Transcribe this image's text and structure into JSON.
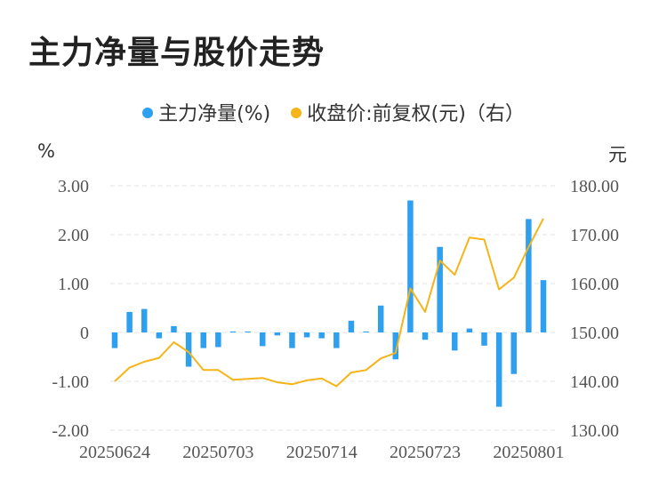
{
  "chart_data": {
    "type": "bar",
    "title": "主力净量与股价走势",
    "legend": [
      {
        "label": "主力净量(%)",
        "color": "#2f9ff0"
      },
      {
        "label": "收盘价:前复权(元)（右）",
        "color": "#f5b417"
      }
    ],
    "left_unit": "%",
    "right_unit": "元",
    "ylim_left": [
      -2,
      3
    ],
    "ylim_right": [
      130,
      180
    ],
    "left_ticks": [
      "3.00",
      "2.00",
      "1.00",
      "0",
      "-1.00",
      "-2.00"
    ],
    "left_tick_values": [
      3,
      2,
      1,
      0,
      -1,
      -2
    ],
    "right_ticks": [
      "180.00",
      "170.00",
      "160.00",
      "150.00",
      "140.00",
      "130.00"
    ],
    "right_tick_values": [
      180,
      170,
      160,
      150,
      140,
      130
    ],
    "x_tick_labels": [
      "20250624",
      "20250703",
      "20250714",
      "20250723",
      "20250801"
    ],
    "x_tick_indices": [
      0,
      7,
      14,
      21,
      28
    ],
    "series": [
      {
        "name": "主力净量(%)",
        "type": "bar",
        "values": [
          -0.32,
          0.42,
          0.48,
          -0.12,
          0.13,
          -0.7,
          -0.32,
          -0.3,
          0.02,
          0.02,
          -0.28,
          -0.06,
          -0.32,
          -0.1,
          -0.12,
          -0.32,
          0.24,
          0.02,
          0.55,
          -0.55,
          2.7,
          -0.15,
          1.75,
          -0.37,
          0.08,
          -0.27,
          -1.52,
          -0.85,
          2.32,
          1.07
        ]
      },
      {
        "name": "收盘价:前复权(元)（右）",
        "type": "line",
        "axis": "right",
        "values": [
          140.0,
          142.8,
          144.0,
          144.8,
          148.0,
          146.0,
          142.3,
          142.3,
          140.3,
          140.5,
          140.7,
          139.8,
          139.4,
          140.2,
          140.6,
          139.0,
          141.8,
          142.3,
          144.7,
          145.8,
          159.0,
          154.2,
          164.7,
          161.8,
          169.4,
          169.0,
          158.8,
          161.2,
          167.5,
          173.3
        ]
      }
    ]
  }
}
